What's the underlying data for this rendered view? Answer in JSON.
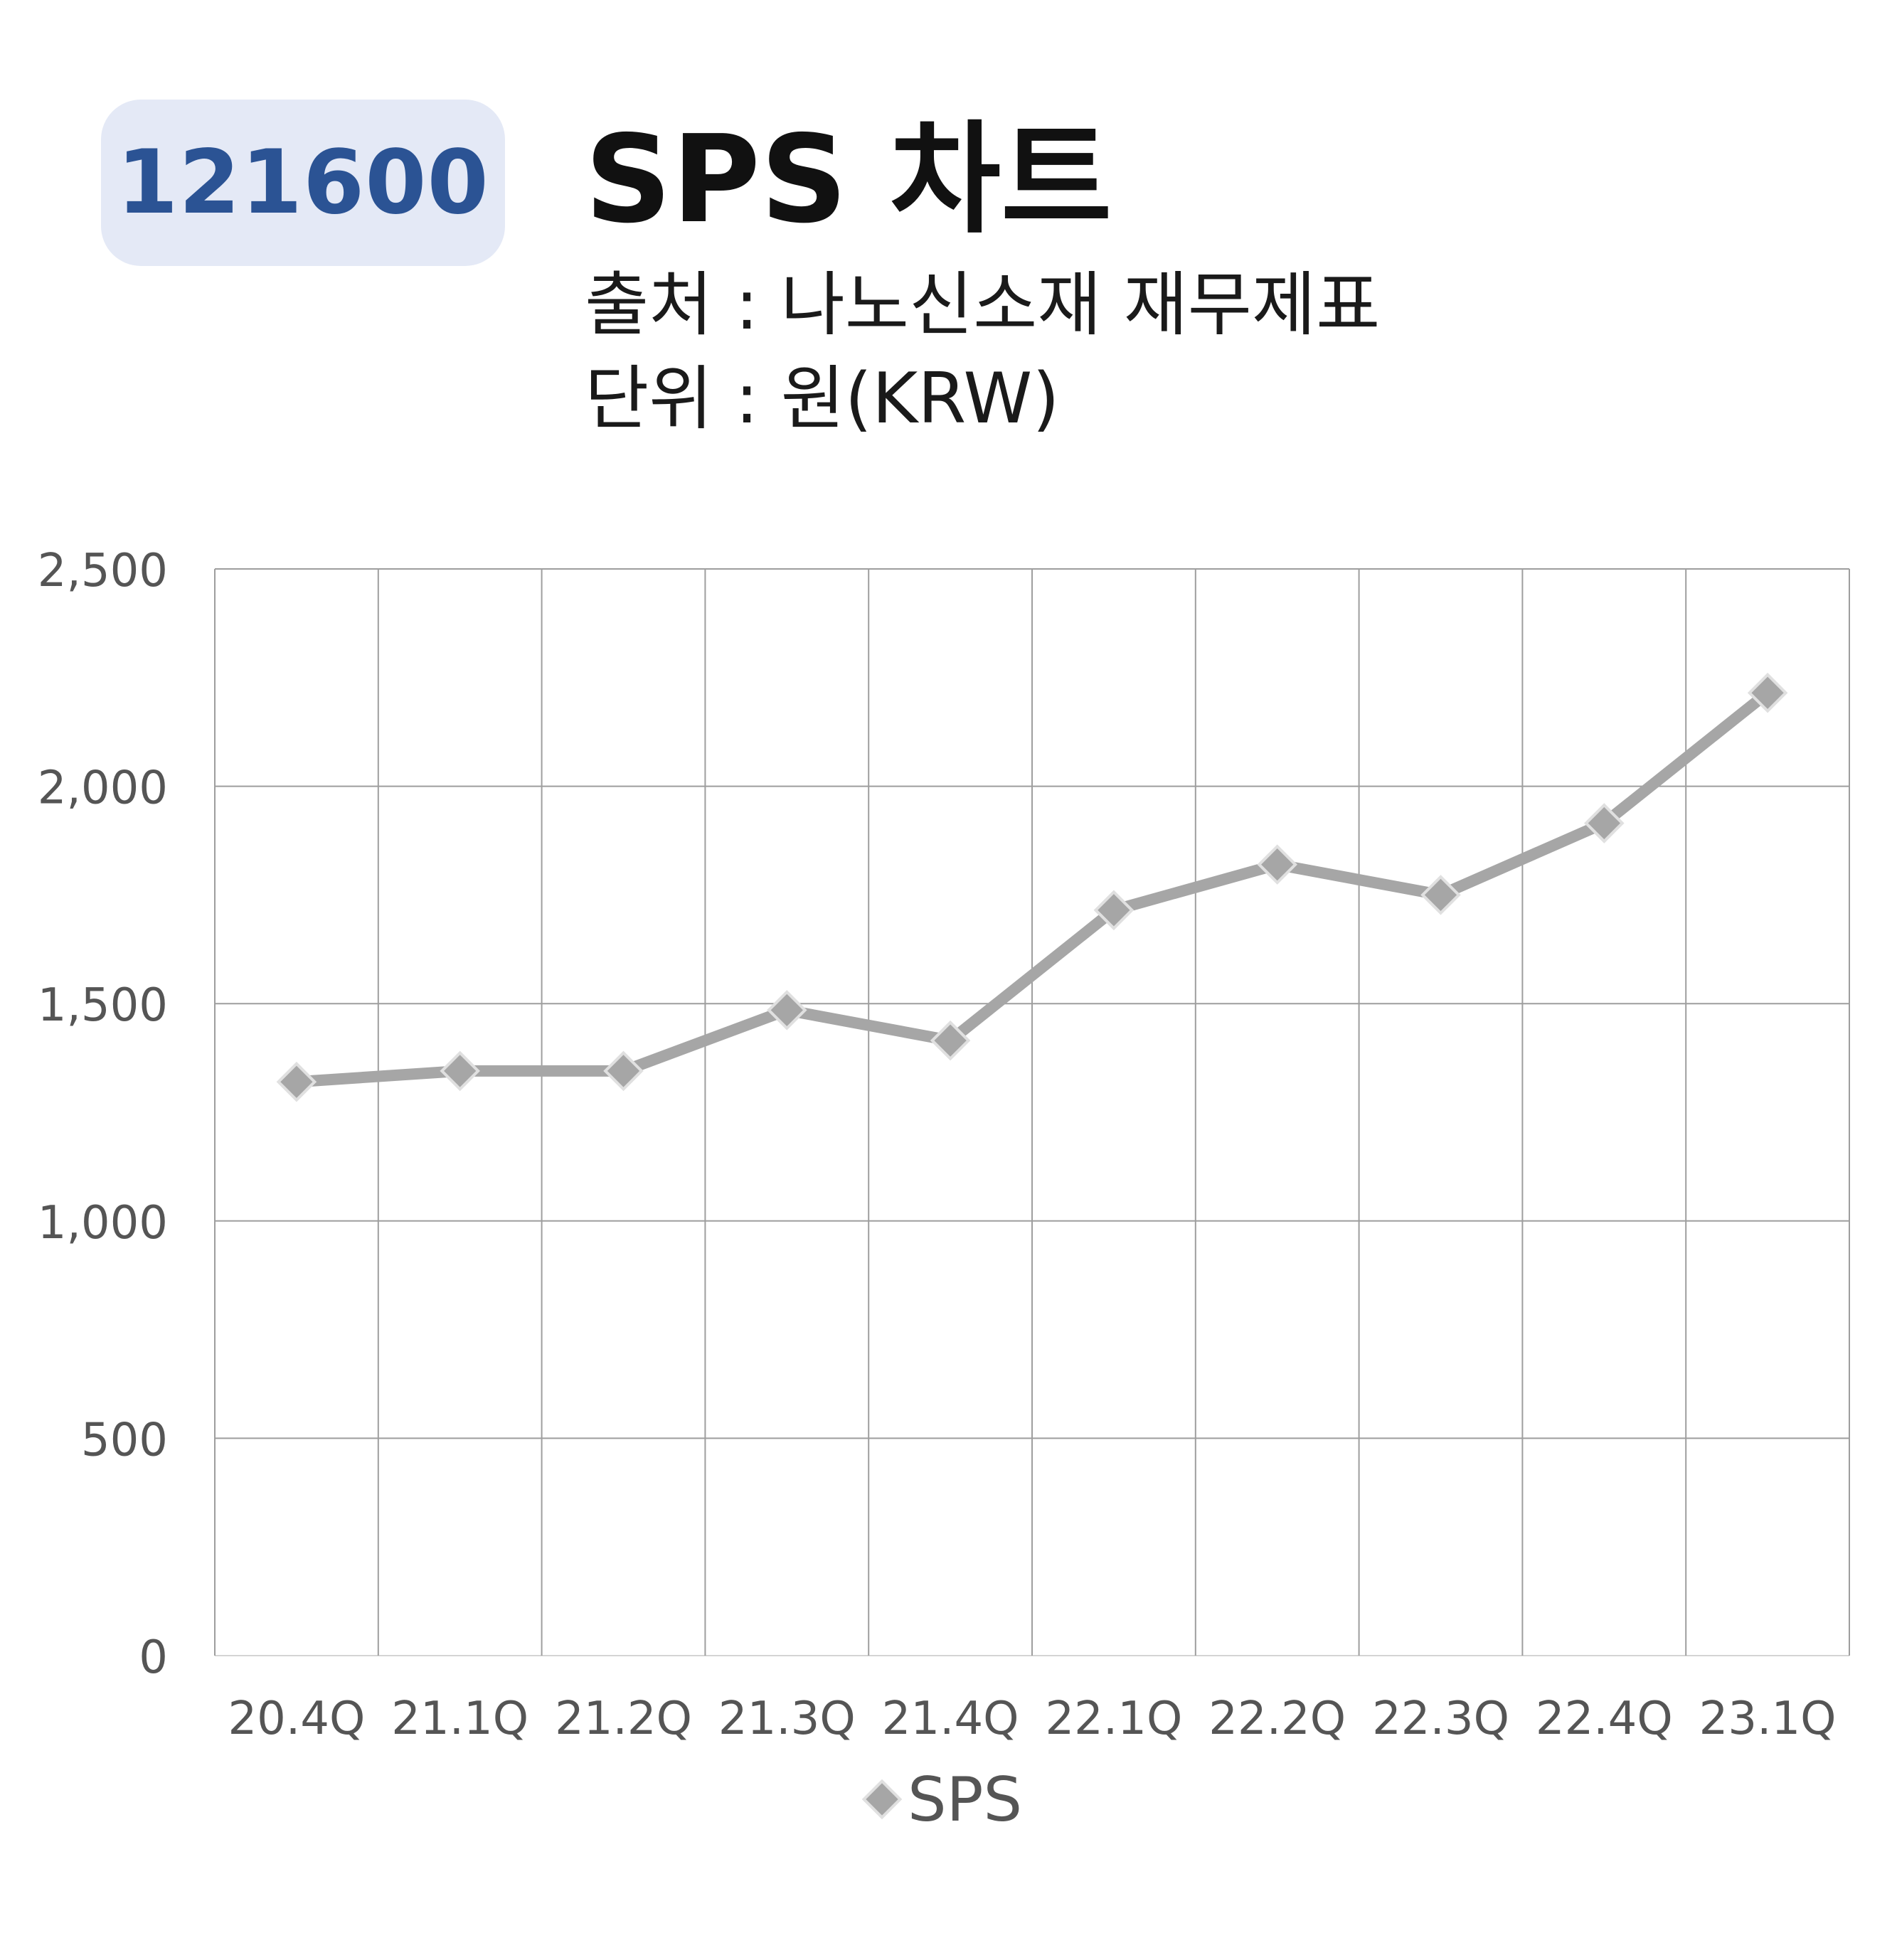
{
  "header": {
    "code": "121600",
    "title": "SPS 차트",
    "source": "출처 : 나노신소재 재무제표",
    "unit": "단위 : 원(KRW)"
  },
  "colors": {
    "badge_bg": "#e4e9f6",
    "badge_text": "#2b5394",
    "series_line": "#a6a6a6",
    "marker_fill": "#a6a6a6",
    "marker_stroke": "#e0e0e0",
    "grid": "#9e9e9e"
  },
  "chart_data": {
    "type": "line",
    "categories": [
      "20.4Q",
      "21.1Q",
      "21.2Q",
      "21.3Q",
      "21.4Q",
      "22.1Q",
      "22.2Q",
      "22.3Q",
      "22.4Q",
      "23.1Q"
    ],
    "series": [
      {
        "name": "SPS",
        "values": [
          1320,
          1345,
          1345,
          1485,
          1415,
          1715,
          1820,
          1750,
          1915,
          2215
        ],
        "marker": "diamond-icon"
      }
    ],
    "ylim": [
      0,
      2500
    ],
    "yticks": [
      0,
      500,
      1000,
      1500,
      2000,
      2500
    ],
    "ytick_labels": [
      "0",
      "500",
      "1,000",
      "1,500",
      "2,000",
      "2,500"
    ],
    "grid": true,
    "legend": "bottom-center"
  }
}
